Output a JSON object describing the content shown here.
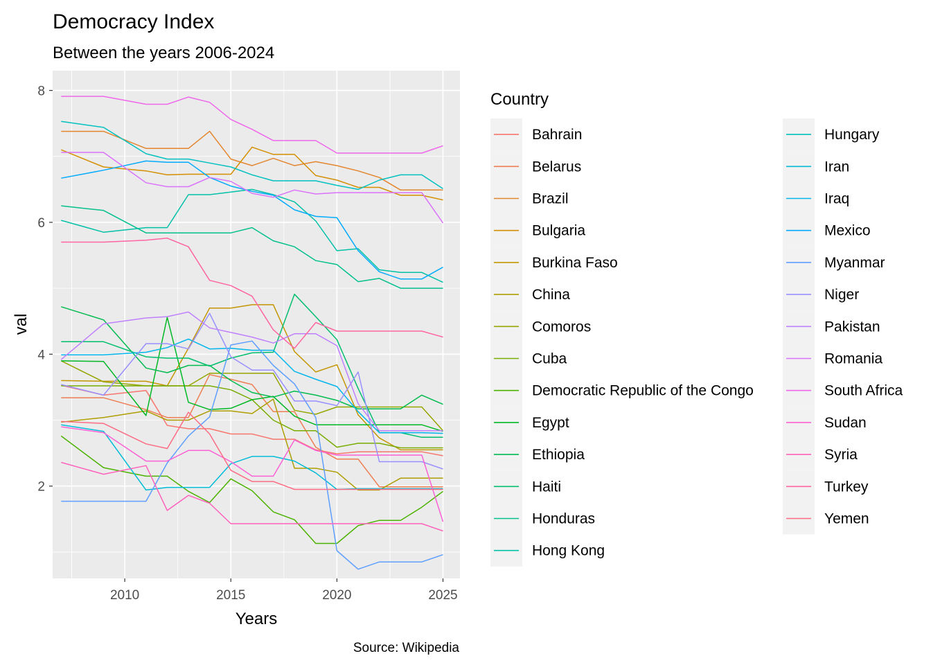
{
  "chart_data": {
    "type": "line",
    "title": "Democracy Index",
    "subtitle": "Between the years 2006-2024",
    "xlabel": "Years",
    "ylabel": "val",
    "caption": "Source: Wikipedia",
    "xlim": [
      2006.6,
      2025.8
    ],
    "ylim": [
      0.6,
      8.3
    ],
    "xticks": [
      2010,
      2015,
      2020,
      2025
    ],
    "yticks": [
      2,
      4,
      6,
      8
    ],
    "grid": true,
    "legend": {
      "title": "Country",
      "position": "right",
      "columns": 2
    },
    "x": [
      2007,
      2009,
      2011,
      2012,
      2013,
      2014,
      2015,
      2016,
      2017,
      2018,
      2019,
      2020,
      2021,
      2022,
      2023,
      2024,
      2025
    ],
    "series": [
      {
        "name": "Bahrain",
        "color": "#F8766D",
        "values": [
          3.53,
          3.38,
          3.45,
          2.92,
          2.87,
          2.87,
          2.79,
          2.79,
          2.71,
          2.71,
          2.55,
          2.49,
          2.52,
          2.52,
          2.52,
          2.52,
          2.46
        ]
      },
      {
        "name": "Belarus",
        "color": "#EE7E51",
        "values": [
          3.34,
          3.34,
          3.16,
          3.04,
          3.04,
          3.69,
          3.62,
          3.54,
          3.13,
          3.13,
          2.59,
          2.41,
          2.41,
          1.99,
          1.99,
          1.99,
          1.99
        ]
      },
      {
        "name": "Brazil",
        "color": "#E3862E",
        "values": [
          7.38,
          7.38,
          7.12,
          7.12,
          7.12,
          7.38,
          6.96,
          6.86,
          6.97,
          6.86,
          6.92,
          6.86,
          6.78,
          6.68,
          6.49,
          6.49,
          6.49
        ]
      },
      {
        "name": "Bulgaria",
        "color": "#D48F00",
        "values": [
          7.1,
          6.84,
          6.78,
          6.72,
          6.73,
          6.73,
          6.73,
          7.14,
          7.03,
          7.03,
          6.71,
          6.64,
          6.53,
          6.53,
          6.41,
          6.41,
          6.34
        ]
      },
      {
        "name": "Burkina Faso",
        "color": "#C39600",
        "values": [
          3.6,
          3.59,
          3.59,
          3.52,
          4.09,
          4.7,
          4.7,
          4.75,
          4.75,
          4.04,
          3.73,
          3.84,
          3.08,
          2.73,
          2.55,
          2.55,
          2.55
        ]
      },
      {
        "name": "China",
        "color": "#AE9E00",
        "values": [
          2.97,
          3.04,
          3.14,
          3.0,
          3.0,
          3.14,
          3.14,
          3.1,
          3.32,
          2.27,
          2.27,
          2.21,
          1.94,
          1.94,
          2.12,
          2.12,
          2.12
        ]
      },
      {
        "name": "Comoros",
        "color": "#96A500",
        "values": [
          3.9,
          3.58,
          3.52,
          3.52,
          3.52,
          3.71,
          3.71,
          3.71,
          3.71,
          3.15,
          3.09,
          3.2,
          3.2,
          3.2,
          3.2,
          3.2,
          2.84
        ]
      },
      {
        "name": "Cuba",
        "color": "#78AC00",
        "values": [
          3.52,
          3.52,
          3.52,
          3.52,
          3.52,
          3.52,
          3.46,
          3.31,
          3.0,
          2.84,
          2.84,
          2.59,
          2.65,
          2.65,
          2.58,
          2.58,
          2.58
        ]
      },
      {
        "name": "Democratic Republic of the Congo",
        "color": "#4CB200",
        "values": [
          2.76,
          2.28,
          2.15,
          2.15,
          1.92,
          1.75,
          2.11,
          1.93,
          1.61,
          1.49,
          1.13,
          1.13,
          1.4,
          1.48,
          1.48,
          1.68,
          1.92
        ]
      },
      {
        "name": "Egypt",
        "color": "#00B824",
        "values": [
          3.9,
          3.89,
          3.07,
          4.56,
          3.27,
          3.16,
          3.18,
          3.31,
          3.36,
          3.06,
          2.93,
          2.93,
          2.93,
          2.93,
          2.93,
          2.93,
          2.83
        ]
      },
      {
        "name": "Ethiopia",
        "color": "#00BB4E",
        "values": [
          4.72,
          4.52,
          3.79,
          3.72,
          3.83,
          3.83,
          3.6,
          3.42,
          3.35,
          3.44,
          3.38,
          3.3,
          3.17,
          3.17,
          3.17,
          3.38,
          3.24
        ]
      },
      {
        "name": "Haiti",
        "color": "#00BE6F",
        "values": [
          4.19,
          4.19,
          3.96,
          3.94,
          3.94,
          3.82,
          3.94,
          4.02,
          4.03,
          4.91,
          4.57,
          4.22,
          3.48,
          2.81,
          2.81,
          2.74,
          2.74
        ]
      },
      {
        "name": "Honduras",
        "color": "#00C08C",
        "values": [
          6.25,
          6.18,
          5.84,
          5.84,
          5.84,
          5.84,
          5.84,
          5.92,
          5.72,
          5.63,
          5.42,
          5.36,
          5.1,
          5.15,
          5.0,
          5.0,
          5.0
        ]
      },
      {
        "name": "Hong Kong",
        "color": "#00C1A7",
        "values": [
          6.03,
          5.85,
          5.92,
          5.92,
          6.42,
          6.42,
          6.46,
          6.5,
          6.42,
          6.31,
          6.02,
          5.57,
          5.6,
          5.28,
          5.24,
          5.24,
          5.09
        ]
      },
      {
        "name": "Hungary",
        "color": "#00C0C0",
        "values": [
          7.53,
          7.44,
          7.04,
          6.96,
          6.96,
          6.9,
          6.84,
          6.72,
          6.63,
          6.63,
          6.63,
          6.56,
          6.5,
          6.64,
          6.72,
          6.72,
          6.51
        ]
      },
      {
        "name": "Iran",
        "color": "#00BCD8",
        "values": [
          2.93,
          2.83,
          1.94,
          1.98,
          1.98,
          1.98,
          2.34,
          2.45,
          2.45,
          2.38,
          2.2,
          1.95,
          1.96,
          1.96,
          1.96,
          1.96,
          1.96
        ]
      },
      {
        "name": "Iraq",
        "color": "#00B5EC",
        "values": [
          3.99,
          3.99,
          4.03,
          4.1,
          4.23,
          4.08,
          4.09,
          4.06,
          4.06,
          3.74,
          3.62,
          3.51,
          3.13,
          2.81,
          2.81,
          2.81,
          2.8
        ]
      },
      {
        "name": "Mexico",
        "color": "#00ABFD",
        "values": [
          6.67,
          6.79,
          6.93,
          6.91,
          6.91,
          6.68,
          6.55,
          6.47,
          6.41,
          6.19,
          6.09,
          6.07,
          5.57,
          5.25,
          5.14,
          5.14,
          5.32
        ]
      },
      {
        "name": "Myanmar",
        "color": "#5E9EFF",
        "values": [
          1.77,
          1.77,
          1.77,
          2.35,
          2.76,
          3.05,
          4.14,
          4.2,
          3.83,
          3.55,
          3.04,
          1.02,
          0.74,
          0.85,
          0.85,
          0.85,
          0.96
        ]
      },
      {
        "name": "Niger",
        "color": "#988FFF",
        "values": [
          3.54,
          3.38,
          4.16,
          4.16,
          4.08,
          4.62,
          3.96,
          3.76,
          3.76,
          3.29,
          3.29,
          3.22,
          3.73,
          2.37,
          2.37,
          2.37,
          2.26
        ]
      },
      {
        "name": "Pakistan",
        "color": "#BF80FF",
        "values": [
          3.92,
          4.46,
          4.55,
          4.57,
          4.64,
          4.4,
          4.33,
          4.26,
          4.17,
          4.31,
          4.31,
          4.13,
          3.25,
          2.84,
          2.84,
          2.84,
          2.84
        ]
      },
      {
        "name": "Romania",
        "color": "#DB72FB",
        "values": [
          7.06,
          7.06,
          6.6,
          6.54,
          6.54,
          6.68,
          6.62,
          6.44,
          6.38,
          6.49,
          6.43,
          6.45,
          6.45,
          6.45,
          6.45,
          6.45,
          5.99
        ]
      },
      {
        "name": "South Africa",
        "color": "#EF67EB",
        "values": [
          7.91,
          7.91,
          7.79,
          7.79,
          7.9,
          7.82,
          7.56,
          7.41,
          7.24,
          7.24,
          7.24,
          7.05,
          7.05,
          7.05,
          7.05,
          7.05,
          7.16
        ]
      },
      {
        "name": "Sudan",
        "color": "#FC61D5",
        "values": [
          2.9,
          2.81,
          2.38,
          2.38,
          2.54,
          2.54,
          2.37,
          2.15,
          2.15,
          2.7,
          2.54,
          2.47,
          2.47,
          2.47,
          2.47,
          2.47,
          1.46
        ]
      },
      {
        "name": "Syria",
        "color": "#FF61BC",
        "values": [
          2.36,
          2.18,
          2.31,
          1.63,
          1.86,
          1.74,
          1.43,
          1.43,
          1.43,
          1.43,
          1.43,
          1.43,
          1.43,
          1.43,
          1.43,
          1.43,
          1.32
        ]
      },
      {
        "name": "Turkey",
        "color": "#FF65A0",
        "values": [
          5.7,
          5.7,
          5.73,
          5.76,
          5.63,
          5.12,
          5.04,
          4.88,
          4.37,
          4.09,
          4.48,
          4.35,
          4.35,
          4.35,
          4.35,
          4.35,
          4.26
        ]
      },
      {
        "name": "Yemen",
        "color": "#FE6C83",
        "values": [
          2.98,
          2.95,
          2.64,
          2.57,
          3.12,
          2.79,
          2.24,
          2.07,
          2.07,
          1.95,
          1.95,
          1.95,
          1.95,
          1.95,
          1.95,
          1.95,
          1.95
        ]
      }
    ]
  }
}
